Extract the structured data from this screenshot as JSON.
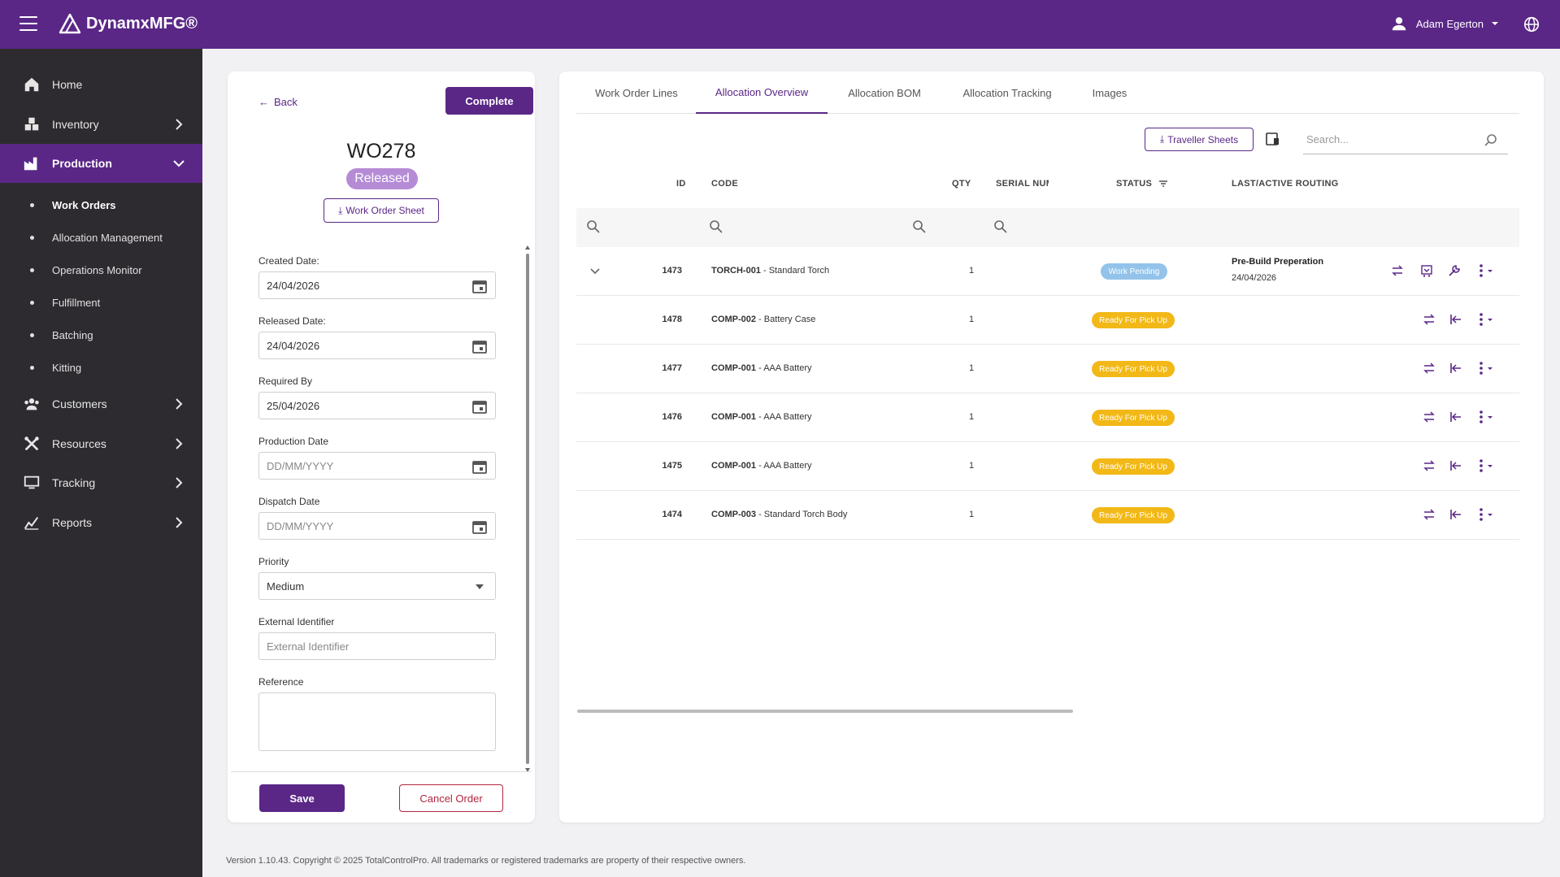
{
  "app": {
    "name": "DynamxMFG®",
    "user": "Adam Egerton"
  },
  "sidebar": {
    "items": [
      {
        "label": "Home",
        "icon": "home-icon"
      },
      {
        "label": "Inventory",
        "icon": "inventory-icon"
      },
      {
        "label": "Production",
        "icon": "production-icon",
        "active": true
      },
      {
        "label": "Customers",
        "icon": "customers-icon"
      },
      {
        "label": "Resources",
        "icon": "resources-icon"
      },
      {
        "label": "Tracking",
        "icon": "tracking-icon"
      },
      {
        "label": "Reports",
        "icon": "reports-icon"
      }
    ],
    "sub_items": [
      {
        "label": "Work Orders",
        "current": true
      },
      {
        "label": "Allocation Management"
      },
      {
        "label": "Operations Monitor"
      },
      {
        "label": "Fulfillment"
      },
      {
        "label": "Batching"
      },
      {
        "label": "Kitting"
      }
    ]
  },
  "work_order": {
    "back_label": "Back",
    "complete_label": "Complete",
    "number": "WO278",
    "status": "Released",
    "sheet_label": "Work Order Sheet",
    "fields": {
      "created_label": "Created Date:",
      "created_value": "24/04/2026",
      "released_label": "Released Date:",
      "released_value": "24/04/2026",
      "required_label": "Required By",
      "required_value": "25/04/2026",
      "production_label": "Production Date",
      "production_placeholder": "DD/MM/YYYY",
      "dispatch_label": "Dispatch Date",
      "dispatch_placeholder": "DD/MM/YYYY",
      "priority_label": "Priority",
      "priority_value": "Medium",
      "external_label": "External Identifier",
      "external_placeholder": "External Identifier",
      "reference_label": "Reference"
    },
    "save_label": "Save",
    "cancel_label": "Cancel Order"
  },
  "tabs": [
    {
      "label": "Work Order Lines"
    },
    {
      "label": "Allocation Overview",
      "active": true
    },
    {
      "label": "Allocation BOM"
    },
    {
      "label": "Allocation Tracking"
    },
    {
      "label": "Images"
    }
  ],
  "toolbar": {
    "traveller_label": "Traveller Sheets",
    "search_placeholder": "Search..."
  },
  "table": {
    "headers": {
      "id": "ID",
      "code": "CODE",
      "qty": "QTY",
      "serial": "SERIAL NUM",
      "status": "STATUS",
      "routing": "LAST/ACTIVE ROUTING"
    },
    "rows": [
      {
        "id": "1473",
        "code": "TORCH-001",
        "desc": " - Standard Torch",
        "qty": "1",
        "status": "Work Pending",
        "status_type": "pending",
        "routing": "Pre-Build Preperation",
        "routing_date": "24/04/2026"
      },
      {
        "id": "1478",
        "code": "COMP-002",
        "desc": " - Battery Case",
        "qty": "1",
        "status": "Ready For Pick Up",
        "status_type": "ready"
      },
      {
        "id": "1477",
        "code": "COMP-001",
        "desc": " - AAA Battery",
        "qty": "1",
        "status": "Ready For Pick Up",
        "status_type": "ready"
      },
      {
        "id": "1476",
        "code": "COMP-001",
        "desc": " - AAA Battery",
        "qty": "1",
        "status": "Ready For Pick Up",
        "status_type": "ready"
      },
      {
        "id": "1475",
        "code": "COMP-001",
        "desc": " - AAA Battery",
        "qty": "1",
        "status": "Ready For Pick Up",
        "status_type": "ready"
      },
      {
        "id": "1474",
        "code": "COMP-003",
        "desc": " - Standard Torch Body",
        "qty": "1",
        "status": "Ready For Pick Up",
        "status_type": "ready"
      }
    ]
  },
  "footer": "Version 1.10.43. Copyright © 2025 TotalControlPro. All trademarks or registered trademarks are property of their respective owners.",
  "colors": {
    "brand": "#5a2787",
    "sidebar_bg": "#2d2b2f",
    "pending": "#93c3ea",
    "ready": "#f2b817",
    "released": "#b58bd6",
    "danger": "#b3263f"
  }
}
